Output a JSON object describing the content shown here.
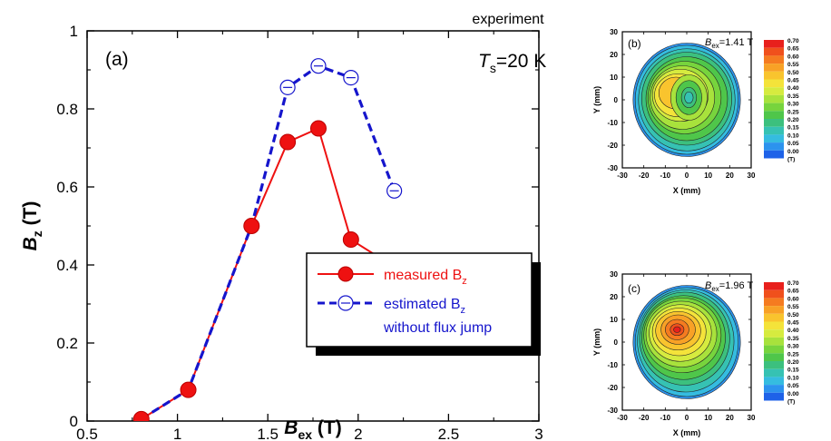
{
  "main": {
    "title_top": "experiment",
    "panel_label": "(a)",
    "temp_T": "T",
    "temp_sub": "s",
    "temp_rest": "=20 K",
    "ylabel_main": "B",
    "ylabel_sub": "z",
    "ylabel_unit": " (T)",
    "xlabel_main": "B",
    "xlabel_sub": "ex",
    "xlabel_unit": " (T)",
    "legend": {
      "measured_text": "measured B",
      "measured_sub": "z",
      "estimated_text": "estimated B",
      "estimated_sub": "z",
      "estimated_line2": "without flux jump"
    }
  },
  "colors": {
    "measured": "#ee1111",
    "estimated": "#1515cc",
    "legend_text_measured": "#ee1111",
    "legend_text_estimated": "#1515cc"
  },
  "chart_data": [
    {
      "type": "line",
      "xlim": [
        0.5,
        3
      ],
      "ylim": [
        0,
        1
      ],
      "x_ticks": [
        "0.5",
        "1",
        "1.5",
        "2",
        "2.5",
        "3"
      ],
      "y_ticks": [
        "0",
        "0.2",
        "0.4",
        "0.6",
        "0.8",
        "1"
      ],
      "series": [
        {
          "name": "measured Bz",
          "x": [
            0.8,
            1.06,
            1.41,
            1.61,
            1.78,
            1.96,
            2.2
          ],
          "y": [
            0.005,
            0.08,
            0.5,
            0.715,
            0.75,
            0.465,
            0.395
          ]
        },
        {
          "name": "estimated Bz without flux jump",
          "x": [
            0.8,
            1.06,
            1.41,
            1.61,
            1.78,
            1.96,
            2.2
          ],
          "y": [
            0.005,
            0.08,
            0.5,
            0.855,
            0.91,
            0.88,
            0.59
          ],
          "markers_x": [
            1.61,
            1.78,
            1.96,
            2.2
          ],
          "markers_y": [
            0.855,
            0.91,
            0.88,
            0.59
          ]
        }
      ]
    },
    {
      "type": "heatmap",
      "panel": "(b)",
      "annotation": "Bex=1.41 T",
      "annotation_main": "B",
      "annotation_sub": "ex",
      "annotation_rest": "=1.41 T",
      "xlabel": "X (mm)",
      "ylabel": "Y (mm)",
      "x_ticks": [
        "-30",
        "-20",
        "-10",
        "0",
        "10",
        "20",
        "30"
      ],
      "y_ticks": [
        "30",
        "20",
        "10",
        "0",
        "-10",
        "-20",
        "-30"
      ],
      "colorbar_labels": [
        "0.70",
        "0.65",
        "0.60",
        "0.55",
        "0.50",
        "0.45",
        "0.40",
        "0.35",
        "0.30",
        "0.25",
        "0.20",
        "0.15",
        "0.10",
        "0.05",
        "0.00",
        "(T)"
      ]
    },
    {
      "type": "heatmap",
      "panel": "(c)",
      "annotation": "Bex=1.96 T",
      "annotation_main": "B",
      "annotation_sub": "ex",
      "annotation_rest": "=1.96 T",
      "xlabel": "X (mm)",
      "ylabel": "Y (mm)",
      "x_ticks": [
        "-30",
        "-20",
        "-10",
        "0",
        "10",
        "20",
        "30"
      ],
      "y_ticks": [
        "30",
        "20",
        "10",
        "0",
        "-10",
        "-20",
        "-30"
      ],
      "colorbar_labels": [
        "0.70",
        "0.65",
        "0.60",
        "0.55",
        "0.50",
        "0.45",
        "0.40",
        "0.35",
        "0.30",
        "0.25",
        "0.20",
        "0.15",
        "0.10",
        "0.05",
        "0.00",
        "(T)"
      ]
    }
  ],
  "colormap": [
    "#e8201c",
    "#f0501c",
    "#f57b20",
    "#f8a126",
    "#f9c42e",
    "#f4e33a",
    "#d6eb3f",
    "#a8e23c",
    "#77d43d",
    "#4fc64a",
    "#3cc07e",
    "#36c2b3",
    "#35bce0",
    "#2c93ee",
    "#1e62e8"
  ]
}
